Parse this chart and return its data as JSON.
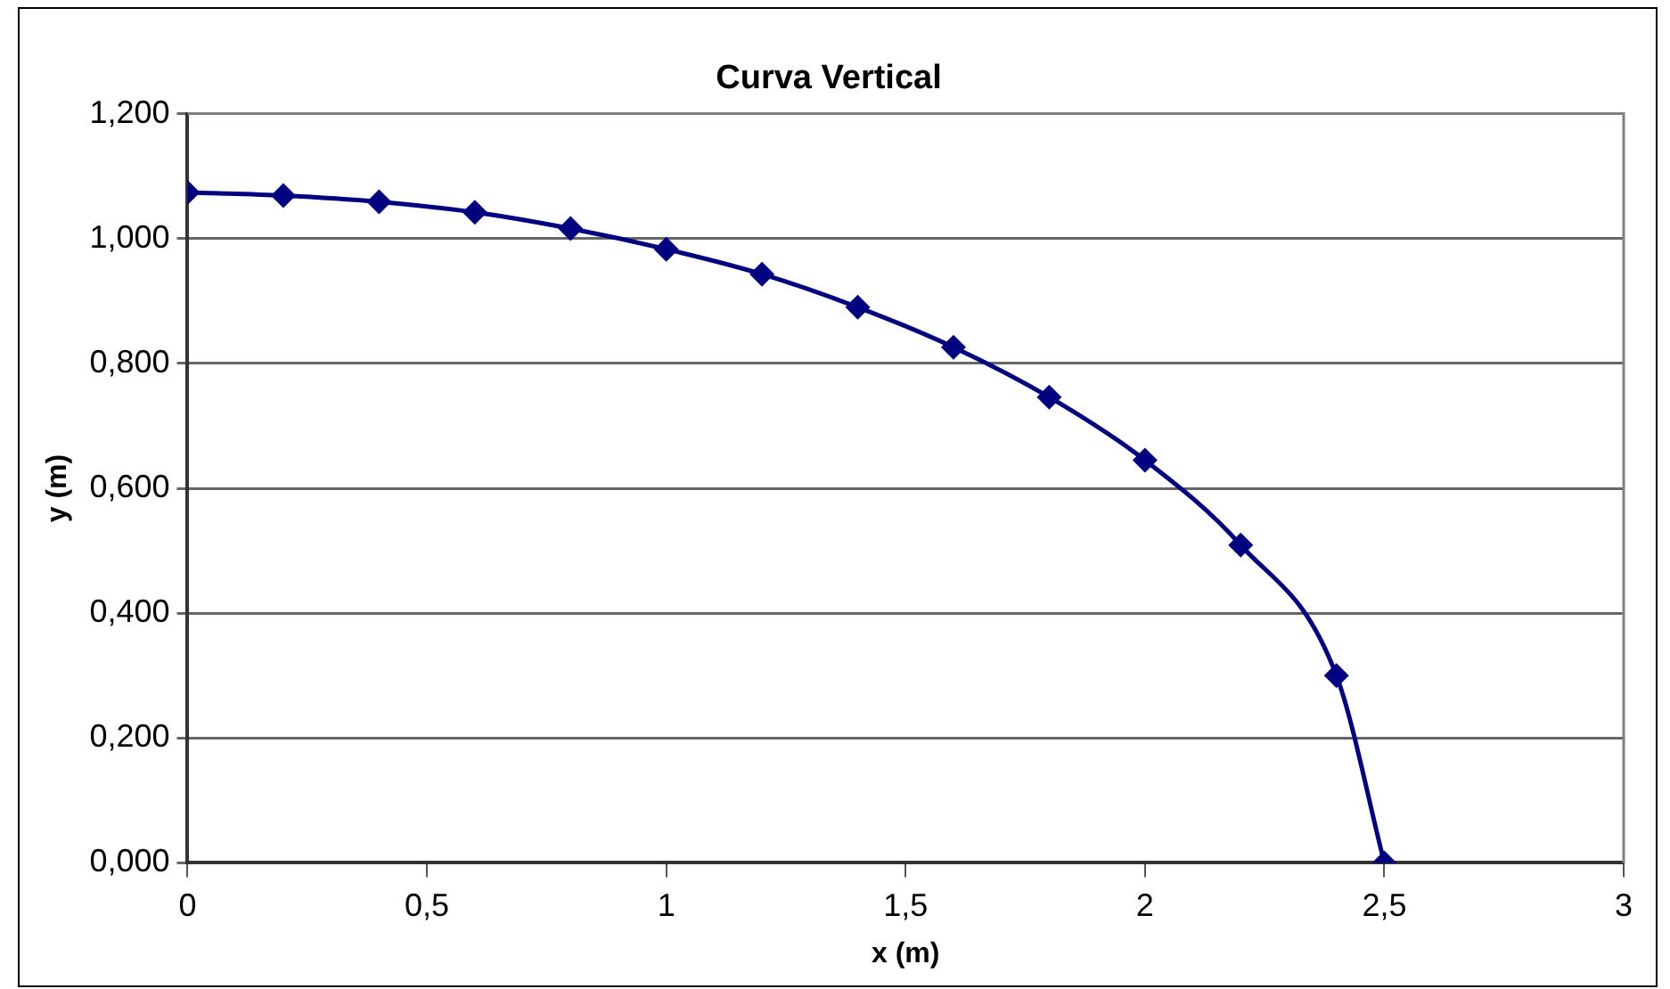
{
  "chart_data": {
    "type": "line",
    "title": "Curva Vertical",
    "xlabel": "x (m)",
    "ylabel": "y (m)",
    "x": [
      0,
      0.2,
      0.4,
      0.6,
      0.8,
      1.0,
      1.2,
      1.4,
      1.6,
      1.8,
      2.0,
      2.2,
      2.4,
      2.5
    ],
    "series": [
      {
        "color": "#000080",
        "values": [
          1.074,
          1.069,
          1.059,
          1.042,
          1.016,
          0.983,
          0.943,
          0.89,
          0.826,
          0.746,
          0.645,
          0.509,
          0.3,
          0.0
        ]
      }
    ],
    "xlim": [
      0,
      3
    ],
    "xticks": [
      0,
      {
        "value": 0.5,
        "label": "0,5"
      },
      1,
      {
        "value": 1.5,
        "label": "1,5"
      },
      2,
      {
        "value": 2.5,
        "label": "2,5"
      },
      3
    ],
    "ylim": [
      0,
      1.2
    ],
    "yticks": [
      {
        "value": 0,
        "label": "0,000"
      },
      {
        "value": 0.2,
        "label": "0,200"
      },
      {
        "value": 0.4,
        "label": "0,400"
      },
      {
        "value": 0.6,
        "label": "0,600"
      },
      {
        "value": 0.8,
        "label": "0,800"
      },
      {
        "value": 1.0,
        "label": "1,000"
      },
      {
        "value": 1.2,
        "label": "1,200"
      }
    ],
    "grid": "y",
    "legend": false,
    "marker": "diamond",
    "line_style": "solid"
  }
}
